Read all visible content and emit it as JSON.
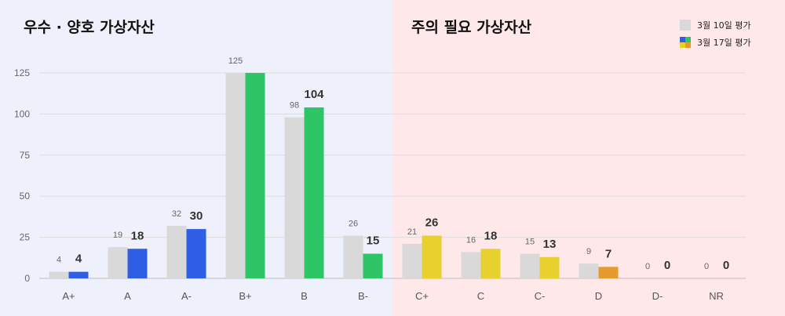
{
  "panels": {
    "left_title": "우수 · 양호 가상자산",
    "right_title": "주의 필요 가상자산"
  },
  "colors": {
    "left_bg": "#eef0fb",
    "right_bg": "#ffe8ea",
    "previous": "#d9d9d9",
    "blue": "#2f5ee6",
    "green": "#2ec566",
    "yellow": "#e8d12f",
    "orange": "#e69a2e"
  },
  "chart_data": {
    "type": "bar",
    "categories": [
      "A+",
      "A",
      "A-",
      "B+",
      "B",
      "B-",
      "C+",
      "C",
      "C-",
      "D",
      "D-",
      "NR"
    ],
    "series": [
      {
        "name": "3월 10일 평가",
        "values": [
          4,
          19,
          32,
          125,
          98,
          26,
          21,
          16,
          15,
          9,
          0,
          0
        ]
      },
      {
        "name": "3월 17일 평가",
        "values": [
          4,
          18,
          30,
          125,
          104,
          15,
          26,
          18,
          13,
          7,
          0,
          0
        ]
      }
    ],
    "current_colors": [
      "blue",
      "blue",
      "blue",
      "green",
      "green",
      "green",
      "yellow",
      "yellow",
      "yellow",
      "orange",
      "orange",
      "orange"
    ],
    "yticks": [
      0,
      25,
      50,
      75,
      100,
      125
    ],
    "ylim": [
      0,
      125
    ],
    "grid": true,
    "legend": "top-right"
  }
}
